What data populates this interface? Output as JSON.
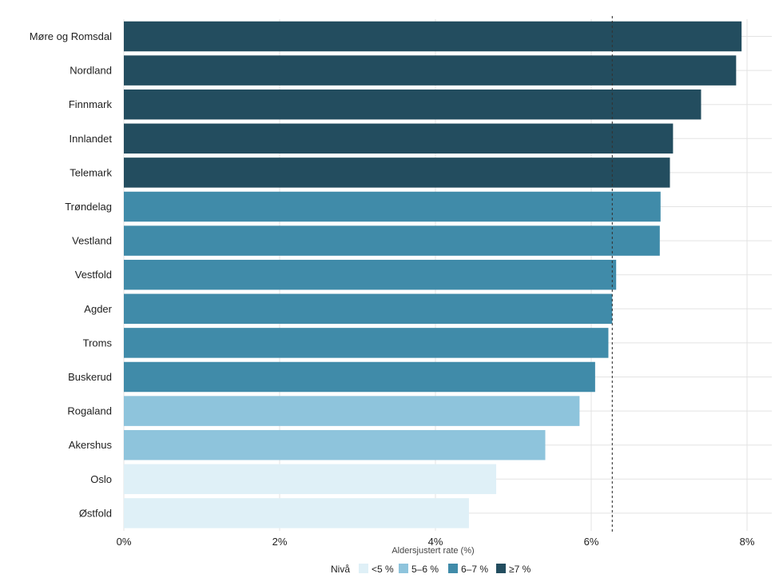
{
  "chart_data": {
    "type": "bar",
    "orientation": "horizontal",
    "categories": [
      "Møre og Romsdal",
      "Nordland",
      "Finnmark",
      "Innlandet",
      "Telemark",
      "Trøndelag",
      "Vestland",
      "Vestfold",
      "Agder",
      "Troms",
      "Buskerud",
      "Rogaland",
      "Akershus",
      "Oslo",
      "Østfold"
    ],
    "values": [
      7.93,
      7.86,
      7.41,
      7.05,
      7.01,
      6.89,
      6.88,
      6.32,
      6.27,
      6.22,
      6.05,
      5.85,
      5.41,
      4.78,
      4.43
    ],
    "levels": [
      "≥7 %",
      "≥7 %",
      "≥7 %",
      "≥7 %",
      "≥7 %",
      "6–7 %",
      "6–7 %",
      "6–7 %",
      "6–7 %",
      "6–7 %",
      "6–7 %",
      "5–6 %",
      "5–6 %",
      "<5 %",
      "<5 %"
    ],
    "xlabel": "Aldersjustert rate (%)",
    "ylabel": "",
    "xlim": [
      0,
      8.3
    ],
    "x_ticks": [
      0,
      2,
      4,
      6,
      8
    ],
    "x_tick_labels": [
      "0%",
      "2%",
      "4%",
      "6%",
      "8%"
    ],
    "reference_line": 6.27,
    "grid": true,
    "legend": {
      "title": "Nivå",
      "position": "bottom",
      "items": [
        {
          "label": "<5 %",
          "color": "#dff0f7"
        },
        {
          "label": "5–6 %",
          "color": "#8ec4dc"
        },
        {
          "label": "6–7 %",
          "color": "#408ba9"
        },
        {
          "label": "≥7 %",
          "color": "#234d5f"
        }
      ]
    }
  }
}
